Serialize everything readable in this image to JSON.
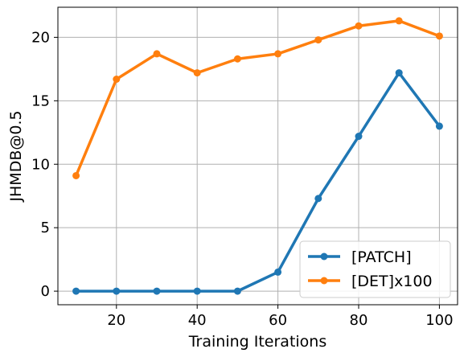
{
  "chart_data": {
    "type": "line",
    "title": "",
    "xlabel": "Training Iterations",
    "ylabel": "JHMDB@0.5",
    "xlim": [
      5.5,
      104.5
    ],
    "ylim": [
      -1.07,
      22.37
    ],
    "xticks": [
      20,
      40,
      60,
      80,
      100
    ],
    "yticks": [
      0,
      5,
      10,
      15,
      20
    ],
    "grid": true,
    "legend_position": "bottom-right",
    "x": [
      10,
      20,
      30,
      40,
      50,
      60,
      70,
      80,
      90,
      100
    ],
    "series": [
      {
        "name": "[PATCH]",
        "color": "#1f77b4",
        "values": [
          0,
          0,
          0,
          0,
          0,
          1.5,
          7.3,
          12.2,
          17.2,
          13.0
        ]
      },
      {
        "name": "[DET]x100",
        "color": "#ff7f0e",
        "values": [
          9.1,
          16.7,
          18.7,
          17.2,
          18.3,
          18.7,
          19.8,
          20.9,
          21.3,
          20.1
        ]
      }
    ]
  }
}
